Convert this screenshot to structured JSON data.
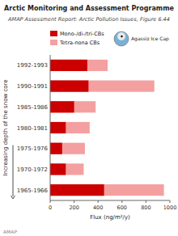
{
  "chart_data": {
    "type": "bar",
    "orientation": "horizontal",
    "stacked": false,
    "grid": false,
    "legend": "upper left",
    "title": "Arctic Monitoring and Assessment Programme",
    "subtitle": "AMAP Assessment Report: Arctic Pollution Issues, Figure 6.44",
    "xlabel": "Flux (ng/m²/y)",
    "ylabel": "Increasing depth of the snow core",
    "annotations": [
      "Agassiz Ice Cap",
      "AMAP"
    ],
    "categories": [
      "1992-1993",
      "1990-1991",
      "1985-1986",
      "1980-1981",
      "1975-1976",
      "1970-1972",
      "1965-1966"
    ],
    "series": [
      {
        "name": "Mono-/di-/tri-CBs",
        "color": "#cc0000",
        "values": [
          310,
          320,
          200,
          130,
          100,
          130,
          450
        ]
      },
      {
        "name": "Tetra-nona CBs",
        "color": "#f4a0a0",
        "values": [
          480,
          870,
          380,
          330,
          290,
          280,
          950
        ]
      }
    ],
    "xlim": [
      0,
      1000
    ],
    "xticks": [
      0,
      200,
      400,
      600,
      800,
      1000
    ]
  }
}
